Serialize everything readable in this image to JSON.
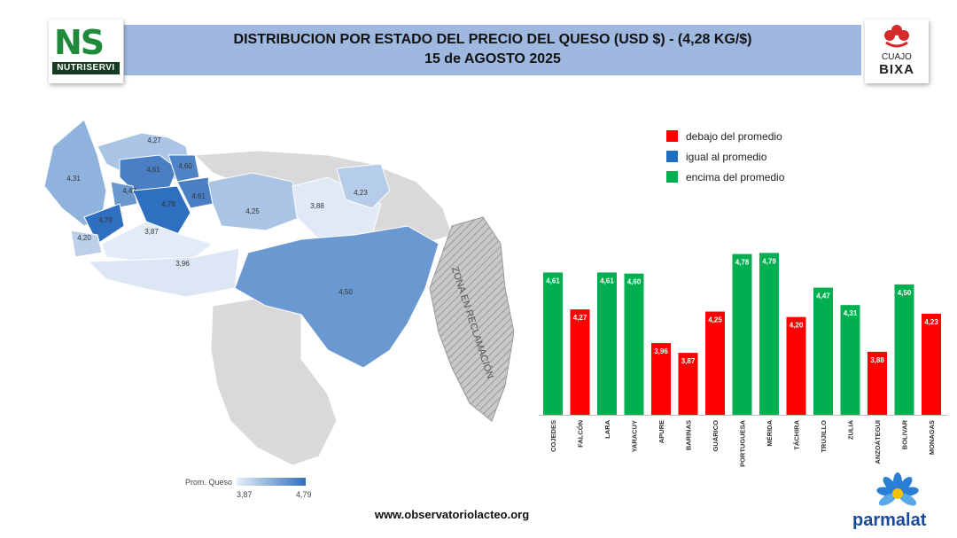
{
  "header": {
    "title_line1": "DISTRIBUCION POR ESTADO DEL PRECIO DEL QUESO (USD $)  - (4,28 KG/$)",
    "title_line2": "15 de AGOSTO 2025"
  },
  "logos": {
    "left_mark": "NS",
    "left_name": "NUTRISERVI",
    "right_line1": "CUAJO",
    "right_line2": "BIXA",
    "bottom_right": "parmalat"
  },
  "legend": [
    {
      "label": "debajo del promedio",
      "color": "#ff0000"
    },
    {
      "label": "igual al promedio",
      "color": "#1f6fc0"
    },
    {
      "label": "encima del promedio",
      "color": "#00b050"
    }
  ],
  "map": {
    "labels": [
      "4,27",
      "4,31",
      "4,61",
      "4,60",
      "4,47",
      "4,78",
      "4,61",
      "4,79",
      "4,20",
      "3,87",
      "3,96",
      "4,25",
      "3,88",
      "4,23",
      "4,50"
    ],
    "zone_label": "ZONA EN RECLAMACIÓN",
    "scale_title": "Prom. Queso",
    "scale_min": "3,87",
    "scale_max": "4,79"
  },
  "chart_data": {
    "type": "bar",
    "categories": [
      "COJEDES",
      "FALCÓN",
      "LARA",
      "YARACUY",
      "APURE",
      "BARINAS",
      "GUÁRICO",
      "PORTUGUESA",
      "MÉRIDA",
      "TÁCHIRA",
      "TRUJILLO",
      "ZULIA",
      "ANZOÁTEGUI",
      "BOLIVAR",
      "MONAGAS"
    ],
    "values": [
      4.61,
      4.27,
      4.61,
      4.6,
      3.96,
      3.87,
      4.25,
      4.78,
      4.79,
      4.2,
      4.47,
      4.31,
      3.88,
      4.5,
      4.23
    ],
    "value_labels": [
      "4,61",
      "4,27",
      "4,61",
      "4,60",
      "3,96",
      "3,87",
      "4,25",
      "4,78",
      "4,79",
      "4,20",
      "4,47",
      "4,31",
      "3,88",
      "4,50",
      "4,23"
    ],
    "colors": [
      "#00b050",
      "#ff0000",
      "#00b050",
      "#00b050",
      "#ff0000",
      "#ff0000",
      "#ff0000",
      "#00b050",
      "#00b050",
      "#ff0000",
      "#00b050",
      "#00b050",
      "#ff0000",
      "#00b050",
      "#ff0000"
    ],
    "title": "",
    "xlabel": "",
    "ylabel": ""
  },
  "footer": {
    "url": "www.observatoriolacteo.org"
  }
}
